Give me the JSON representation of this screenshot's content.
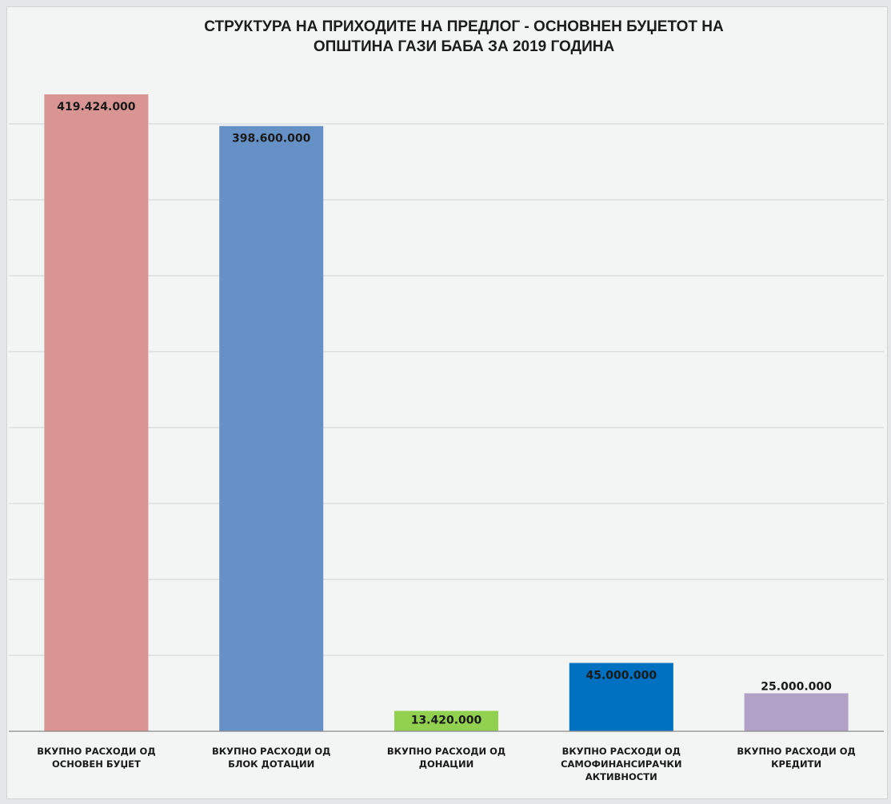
{
  "chart_data": {
    "type": "bar",
    "title_lines": [
      "СТРУКТУРА НА ПРИХОДИТЕ НА ПРЕДЛОГ - ОСНОВНЕН БУЏЕТОТ НА",
      "ОПШТИНА ГАЗИ БАБА  ЗА 2019 ГОДИНА"
    ],
    "categories": [
      [
        "ВКУПНО РАСХОДИ ОД",
        "ОСНОВЕН БУЏЕТ"
      ],
      [
        "ВКУПНО РАСХОДИ ОД",
        "БЛОК ДОТАЦИИ"
      ],
      [
        "ВКУПНО РАСХОДИ ОД",
        "ДОНАЦИИ"
      ],
      [
        "ВКУПНО РАСХОДИ ОД",
        "САМОФИНАНСИРАЧКИ",
        "АКТИВНОСТИ"
      ],
      [
        "ВКУПНО РАСХОДИ ОД",
        "КРЕДИТИ"
      ]
    ],
    "values": [
      419424000,
      398600000,
      13420000,
      45000000,
      25000000
    ],
    "data_labels": [
      "419.424.000",
      "398.600.000",
      "13.420.000",
      "45.000.000",
      "25.000.000"
    ],
    "colors": [
      "#d99594",
      "#6591c7",
      "#92d050",
      "#0070c0",
      "#b2a1c7"
    ],
    "ylim": [
      0,
      440000000
    ],
    "y_gridline_step": 50000000,
    "grid": true,
    "legend": "none"
  }
}
